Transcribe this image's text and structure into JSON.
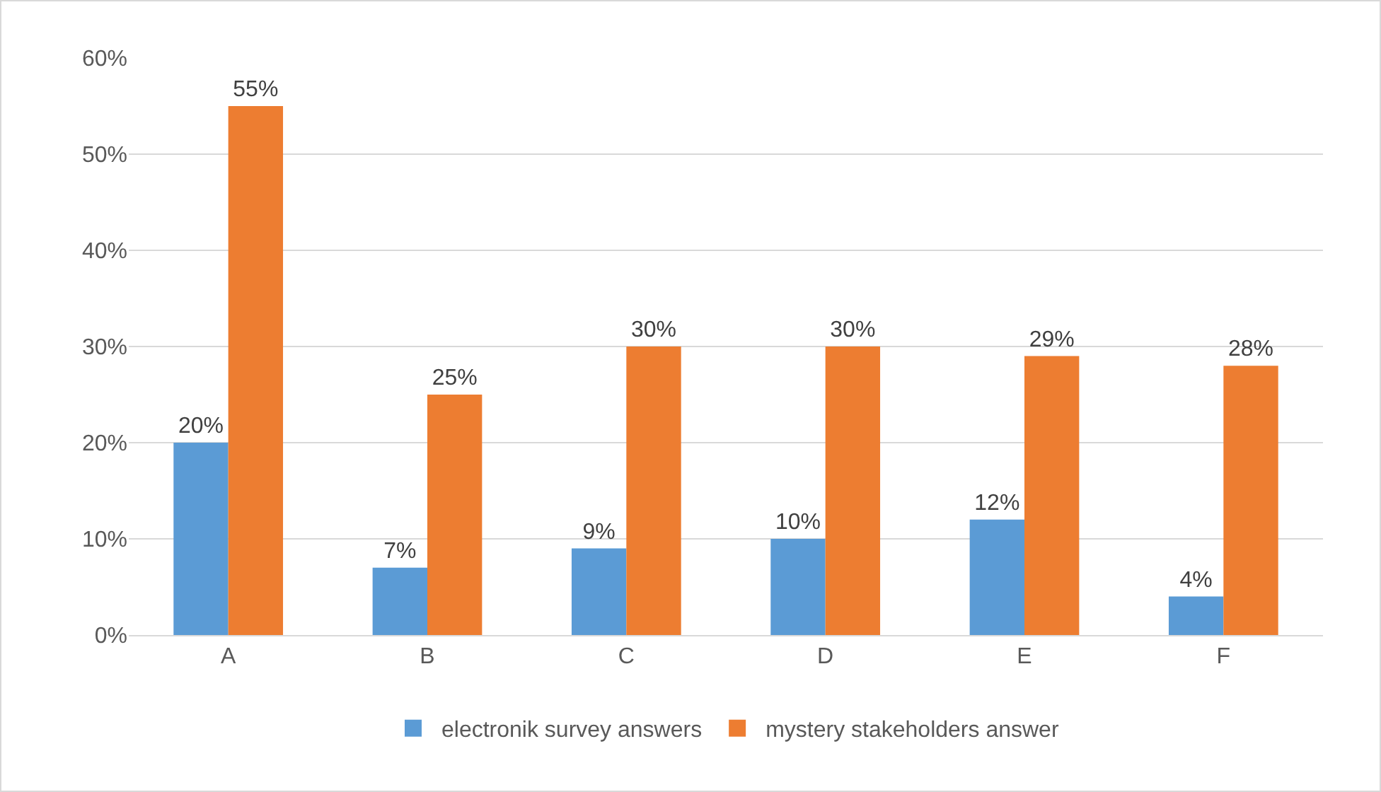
{
  "chart_data": {
    "type": "bar",
    "categories": [
      "A",
      "B",
      "C",
      "D",
      "E",
      "F"
    ],
    "series": [
      {
        "name": "electronik survey answers",
        "color": "#5b9bd5",
        "values": [
          20,
          7,
          9,
          10,
          12,
          4
        ],
        "value_labels": [
          "20%",
          "7%",
          "9%",
          "10%",
          "12%",
          "4%"
        ]
      },
      {
        "name": "mystery stakeholders answer",
        "color": "#ed7d31",
        "values": [
          55,
          25,
          30,
          30,
          29,
          28
        ],
        "value_labels": [
          "55%",
          "25%",
          "30%",
          "30%",
          "29%",
          "28%"
        ]
      }
    ],
    "ylim": [
      0,
      60
    ],
    "yticks": [
      {
        "value": 0,
        "label": "0%"
      },
      {
        "value": 10,
        "label": "10%"
      },
      {
        "value": 20,
        "label": "20%"
      },
      {
        "value": 30,
        "label": "30%"
      },
      {
        "value": 40,
        "label": "40%"
      },
      {
        "value": 50,
        "label": "50%"
      },
      {
        "value": 60,
        "label": "60%"
      }
    ],
    "grid": "y",
    "legend": "bottom"
  }
}
